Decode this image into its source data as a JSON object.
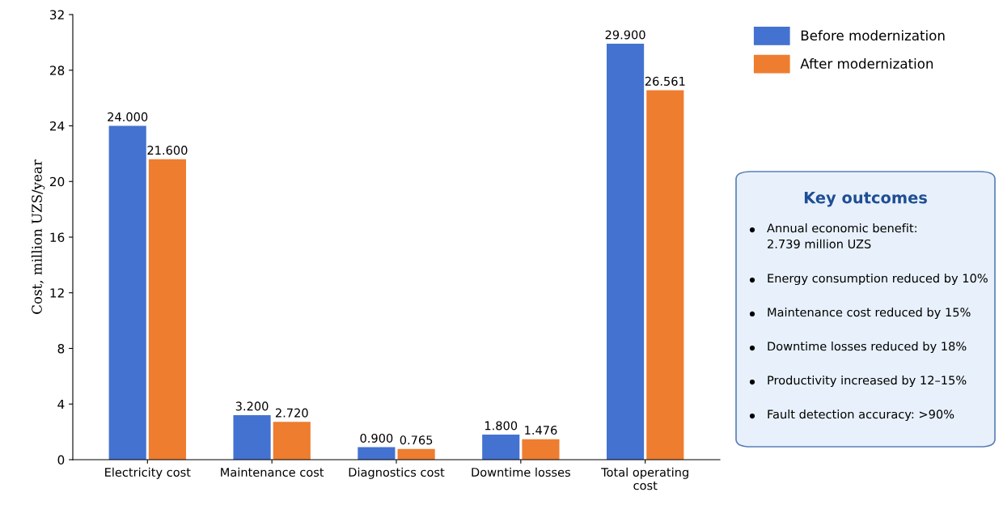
{
  "chart_data": {
    "type": "bar",
    "ylabel": "Cost, million UZS/year",
    "categories": [
      "Electricity cost",
      "Maintenance cost",
      "Diagnostics cost",
      "Downtime losses",
      "Total operating\ncost"
    ],
    "series": [
      {
        "name": "Before modernization",
        "color": "#4472d0",
        "values": [
          24.0,
          3.2,
          0.9,
          1.8,
          29.9
        ],
        "value_labels": [
          "24.000",
          "3.200",
          "0.900",
          "1.800",
          "29.900"
        ]
      },
      {
        "name": "After modernization",
        "color": "#ee7d30",
        "values": [
          21.6,
          2.72,
          0.765,
          1.476,
          26.561
        ],
        "value_labels": [
          "21.600",
          "2.720",
          "0.765",
          "1.476",
          "26.561"
        ]
      }
    ],
    "ylim": [
      0,
      32
    ],
    "yticks": [
      0,
      4,
      8,
      12,
      16,
      20,
      24,
      28,
      32
    ],
    "grid": false,
    "legend": "top right",
    "annotations": [
      "Key outcomes",
      "Annual economic benefit:\n2.739 million UZS",
      "Energy consumption reduced by 10%",
      "Maintenance cost reduced by 15%",
      "Downtime losses reduced by 18%",
      "Productivity increased by 12–15%",
      "Fault detection accuracy: >90%"
    ]
  }
}
